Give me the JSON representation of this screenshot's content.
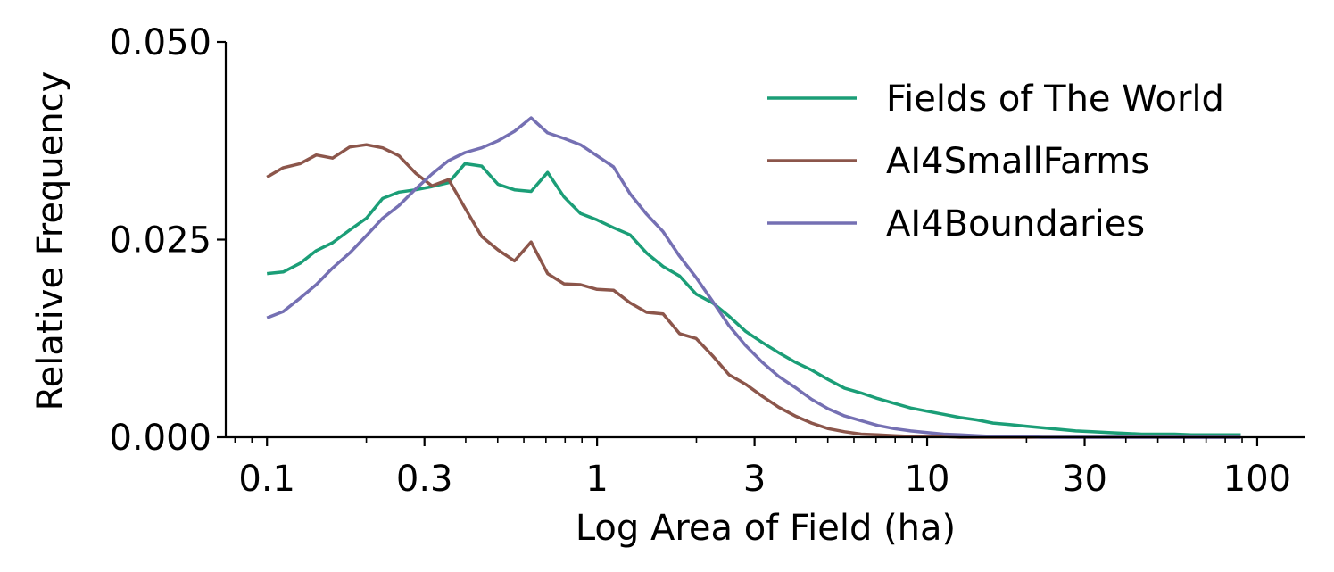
{
  "chart_data": {
    "type": "line",
    "title": "",
    "xlabel": "Log Area of Field (ha)",
    "ylabel": "Relative Frequency",
    "xscale": "log",
    "xlim": [
      0.075,
      140
    ],
    "ylim": [
      0,
      0.05
    ],
    "grid": false,
    "legend_position": "top-right",
    "x_ticks": [
      0.1,
      0.3,
      1,
      3,
      10,
      30,
      100
    ],
    "x_tick_labels": [
      "0.1",
      "0.3",
      "1",
      "3",
      "10",
      "30",
      "100"
    ],
    "y_ticks": [
      0,
      0.025,
      0.05
    ],
    "y_tick_labels": [
      "0.000",
      "0.025",
      "0.050"
    ],
    "x": [
      0.1,
      0.112,
      0.126,
      0.141,
      0.158,
      0.178,
      0.2,
      0.224,
      0.251,
      0.282,
      0.316,
      0.355,
      0.398,
      0.447,
      0.501,
      0.562,
      0.631,
      0.708,
      0.794,
      0.891,
      1.0,
      1.122,
      1.259,
      1.413,
      1.585,
      1.778,
      1.995,
      2.239,
      2.512,
      2.818,
      3.162,
      3.548,
      3.981,
      4.467,
      5.012,
      5.623,
      6.31,
      7.079,
      7.943,
      8.913,
      10.0,
      11.22,
      12.59,
      14.13,
      15.85,
      17.78,
      19.95,
      22.39,
      25.12,
      28.18,
      31.62,
      35.48,
      39.81,
      44.67,
      50.12,
      56.23,
      63.1,
      70.79,
      79.43,
      89.13
    ],
    "series": [
      {
        "name": "Fields of The World",
        "color": "#1b9e77",
        "values": [
          0.0207,
          0.0209,
          0.022,
          0.0236,
          0.0246,
          0.0262,
          0.0277,
          0.0302,
          0.031,
          0.0313,
          0.0317,
          0.0322,
          0.0346,
          0.0343,
          0.032,
          0.0313,
          0.0311,
          0.0335,
          0.0304,
          0.0283,
          0.0275,
          0.0265,
          0.0256,
          0.0233,
          0.0216,
          0.0204,
          0.0181,
          0.017,
          0.0153,
          0.0134,
          0.012,
          0.0107,
          0.0095,
          0.0085,
          0.0073,
          0.0062,
          0.0056,
          0.0049,
          0.0043,
          0.0037,
          0.0033,
          0.0029,
          0.0025,
          0.0022,
          0.0018,
          0.0016,
          0.0014,
          0.0012,
          0.001,
          0.0008,
          0.0007,
          0.0006,
          0.0005,
          0.0004,
          0.0004,
          0.0004,
          0.0003,
          0.0003,
          0.0003,
          0.0003
        ]
      },
      {
        "name": "AI4SmallFarms",
        "color": "#8c564b",
        "values": [
          0.0329,
          0.0341,
          0.0346,
          0.0357,
          0.0353,
          0.0367,
          0.037,
          0.0366,
          0.0356,
          0.0334,
          0.0318,
          0.0326,
          0.029,
          0.0254,
          0.0237,
          0.0223,
          0.0247,
          0.0207,
          0.0194,
          0.0193,
          0.0187,
          0.0186,
          0.017,
          0.0158,
          0.0156,
          0.0131,
          0.0125,
          0.0103,
          0.0079,
          0.0067,
          0.0052,
          0.0038,
          0.0027,
          0.0018,
          0.0011,
          0.0007,
          0.0004,
          0.0003,
          0.0002,
          0.0001,
          0.0001,
          0.0001,
          0.0,
          0.0,
          0.0,
          0.0,
          0.0,
          0.0,
          0.0,
          0.0,
          0.0,
          0.0,
          0.0,
          0.0,
          0.0,
          0.0,
          0.0,
          0.0,
          0.0,
          0.0
        ]
      },
      {
        "name": "AI4Boundaries",
        "color": "#7570b3",
        "values": [
          0.0151,
          0.0159,
          0.0176,
          0.0193,
          0.0214,
          0.0233,
          0.0255,
          0.0277,
          0.0293,
          0.0314,
          0.0333,
          0.035,
          0.036,
          0.0366,
          0.0375,
          0.0387,
          0.0404,
          0.0385,
          0.0378,
          0.037,
          0.0356,
          0.0342,
          0.0308,
          0.0282,
          0.026,
          0.0229,
          0.0202,
          0.0172,
          0.0141,
          0.0116,
          0.0095,
          0.0077,
          0.0063,
          0.0048,
          0.0036,
          0.0027,
          0.0021,
          0.0015,
          0.0011,
          0.0008,
          0.0006,
          0.0004,
          0.0003,
          0.0002,
          0.0001,
          0.0001,
          0.0001,
          0.0,
          0.0,
          0.0,
          0.0,
          0.0,
          0.0,
          0.0,
          0.0,
          0.0,
          0.0,
          0.0,
          0.0,
          0.0
        ]
      }
    ]
  }
}
